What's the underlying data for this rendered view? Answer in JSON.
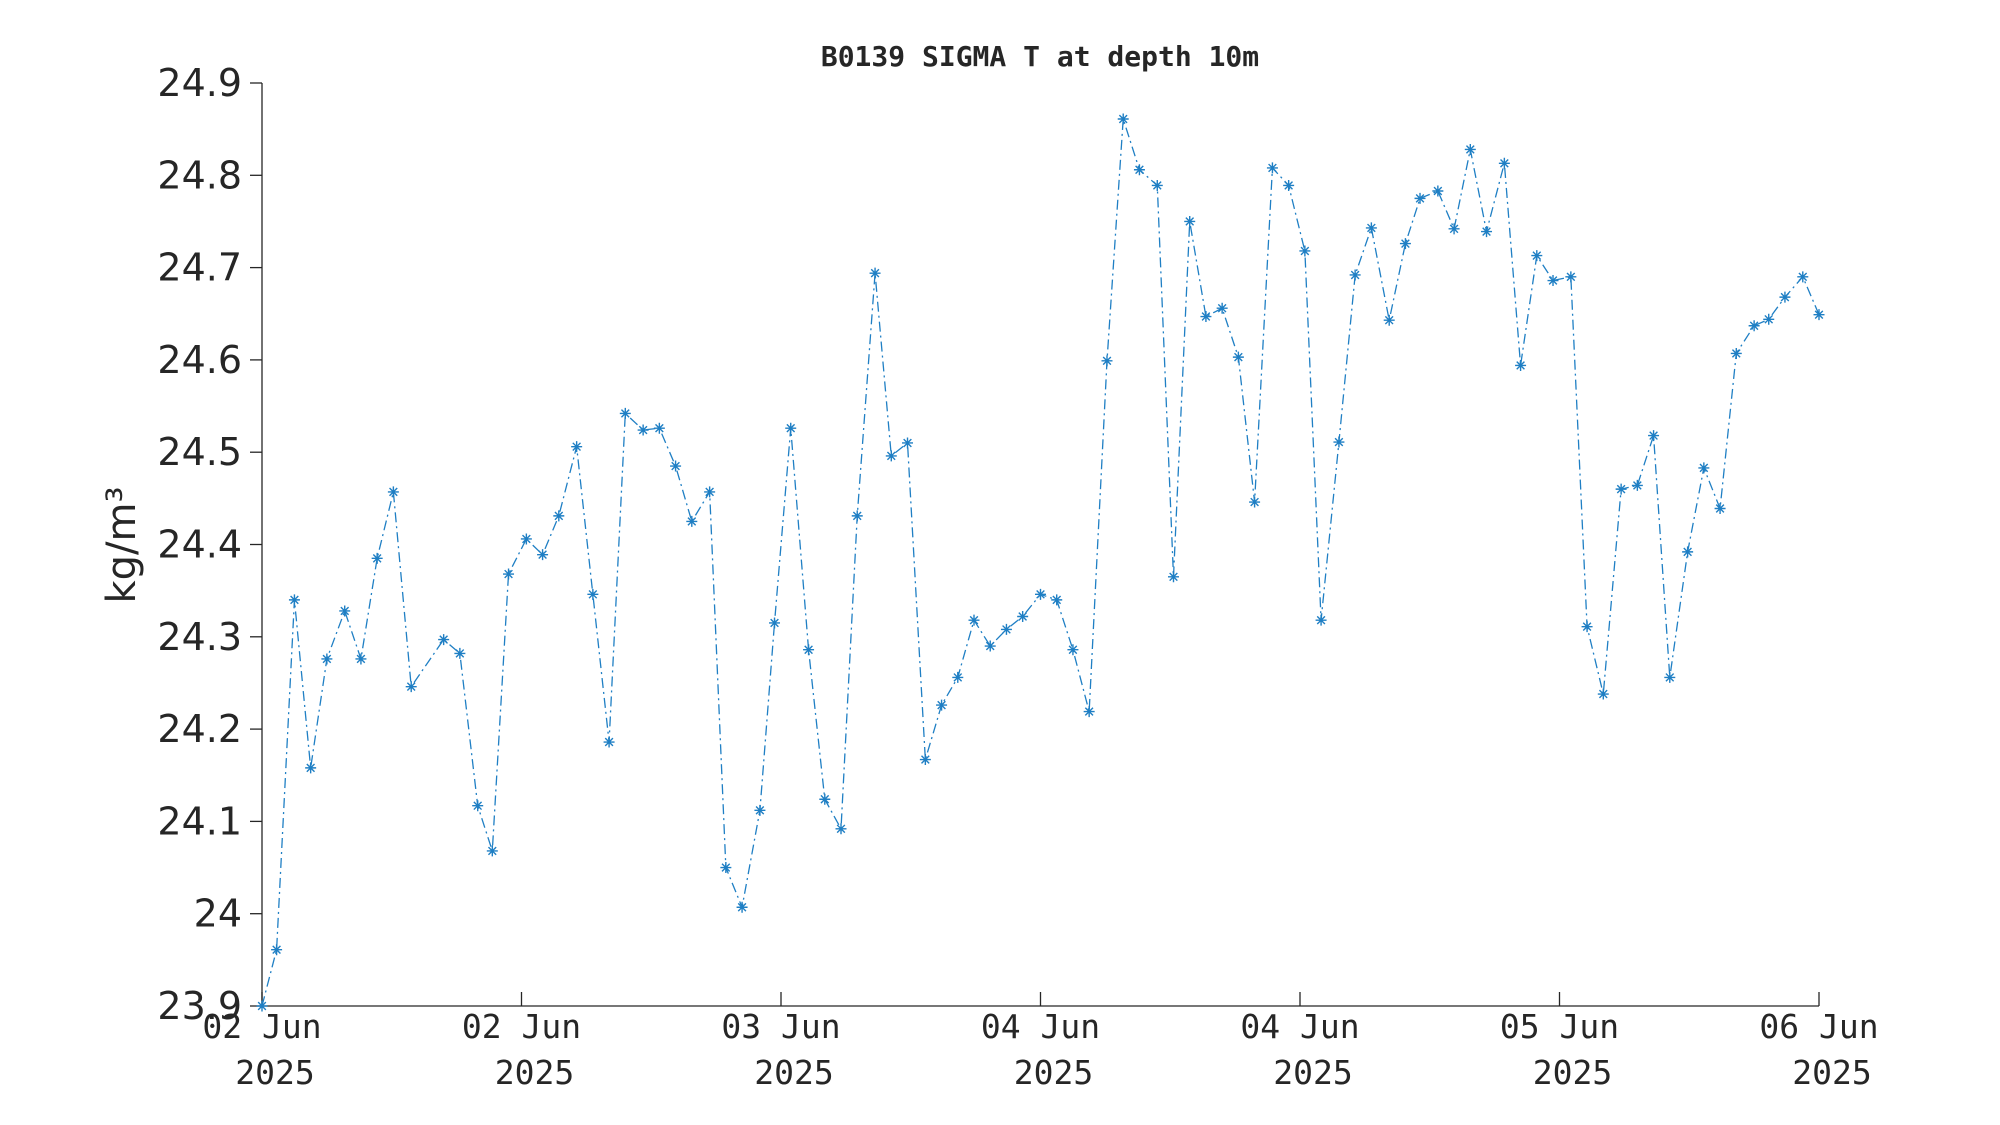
{
  "chart_data": {
    "type": "line",
    "title": "B0139 SIGMA T at depth 10m",
    "ylabel": "kg/m³",
    "series": [
      {
        "color": "#1f7fc4",
        "x": [
          0,
          0.9,
          2.0,
          3.0,
          4.0,
          5.1,
          6.1,
          7.1,
          8.1,
          9.2,
          11.2,
          12.2,
          13.3,
          14.2,
          15.2,
          16.3,
          17.3,
          18.3,
          19.4,
          20.4,
          21.4,
          22.4,
          23.5,
          24.5,
          25.5,
          26.5,
          27.6,
          28.6,
          29.6,
          30.7,
          31.6,
          32.6,
          33.7,
          34.7,
          35.7,
          36.7,
          37.8,
          38.8,
          39.8,
          40.9,
          41.9,
          42.9,
          43.9,
          44.9,
          45.9,
          46.9,
          48.0,
          49.0,
          50.0,
          51.0,
          52.1,
          53.1,
          54.1,
          55.2,
          56.2,
          57.2,
          58.2,
          59.2,
          60.2,
          61.2,
          62.3,
          63.3,
          64.3,
          65.3,
          66.4,
          67.4,
          68.4,
          69.5,
          70.5,
          71.4,
          72.5,
          73.5,
          74.5,
          75.5,
          76.6,
          77.6,
          78.6,
          79.6,
          80.7,
          81.7,
          82.7,
          83.8,
          84.8,
          85.8,
          86.8,
          87.9,
          88.9,
          89.9,
          90.9,
          92.0,
          92.9,
          93.9,
          95.0,
          96.0
        ],
        "values": [
          23.9,
          23.961,
          24.34,
          24.158,
          24.276,
          24.328,
          24.276,
          24.385,
          24.457,
          24.246,
          24.297,
          24.282,
          24.117,
          24.068,
          24.368,
          24.406,
          24.389,
          24.431,
          24.506,
          24.346,
          24.186,
          24.542,
          24.524,
          24.526,
          24.485,
          24.425,
          24.457,
          24.05,
          24.007,
          24.112,
          24.315,
          24.526,
          24.286,
          24.124,
          24.092,
          24.431,
          24.694,
          24.496,
          24.51,
          24.167,
          24.226,
          24.256,
          24.318,
          24.29,
          24.308,
          24.322,
          24.346,
          24.34,
          24.286,
          24.219,
          24.599,
          24.861,
          24.806,
          24.789,
          24.365,
          24.75,
          24.647,
          24.656,
          24.603,
          24.446,
          24.808,
          24.789,
          24.718,
          24.318,
          24.511,
          24.692,
          24.743,
          24.643,
          24.726,
          24.775,
          24.783,
          24.742,
          24.828,
          24.739,
          24.813,
          24.594,
          24.713,
          24.686,
          24.69,
          24.311,
          24.238,
          24.46,
          24.464,
          24.518,
          24.256,
          24.392,
          24.483,
          24.439,
          24.607,
          24.637,
          24.644,
          24.668,
          24.69,
          24.649
        ]
      }
    ],
    "xlim": [
      0,
      96
    ],
    "xticks": [
      {
        "value": 0,
        "label": "02 Jun\n2025"
      },
      {
        "value": 16,
        "label": "02 Jun\n2025"
      },
      {
        "value": 32,
        "label": "03 Jun\n2025"
      },
      {
        "value": 48,
        "label": "04 Jun\n2025"
      },
      {
        "value": 64,
        "label": "04 Jun\n2025"
      },
      {
        "value": 80,
        "label": "05 Jun\n2025"
      },
      {
        "value": 96,
        "label": "06 Jun\n2025"
      }
    ],
    "ylim": [
      23.9,
      24.9
    ],
    "yticks": [
      23.9,
      24,
      24.1,
      24.2,
      24.3,
      24.4,
      24.5,
      24.6,
      24.7,
      24.8,
      24.9
    ],
    "grid": false
  }
}
